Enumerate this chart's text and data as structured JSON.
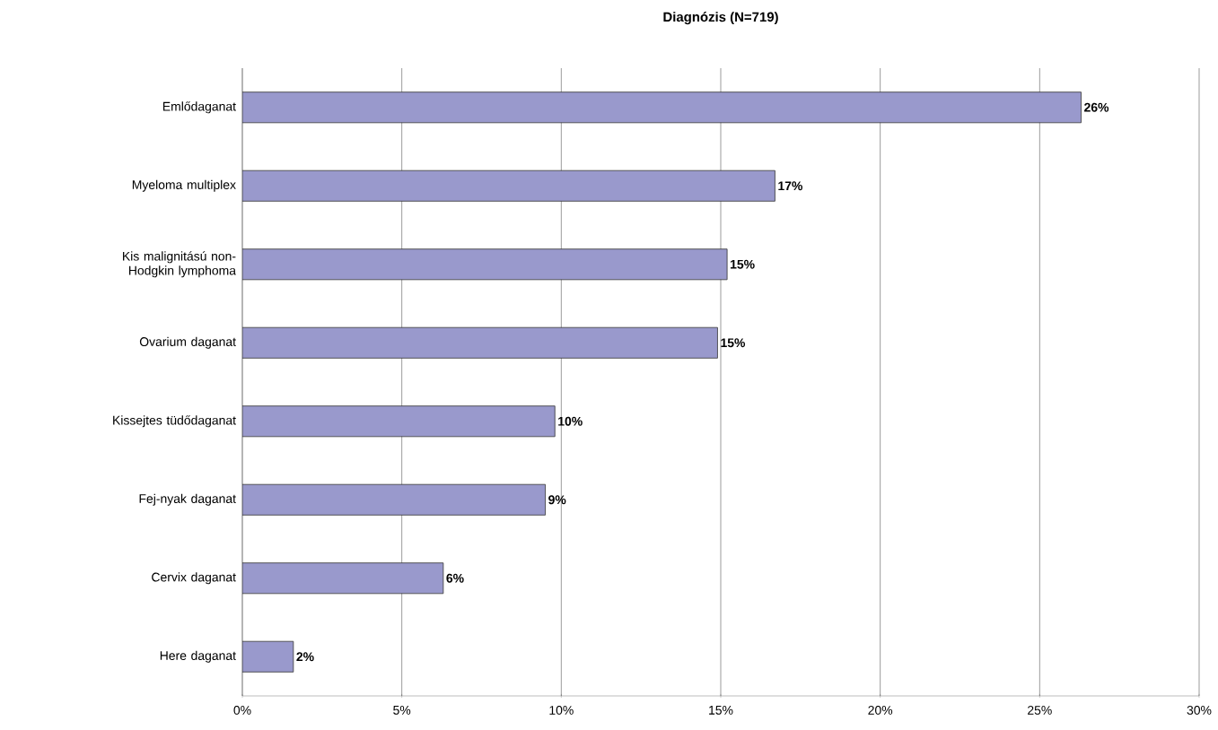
{
  "chart_data": {
    "type": "bar",
    "orientation": "horizontal",
    "title": "Diagnózis (N=719)",
    "categories": [
      "Emlődaganat",
      "Myeloma multiplex",
      "Kis malignitású non-Hodgkin lymphoma",
      "Ovarium daganat",
      "Kissejtes tüdődaganat",
      "Fej-nyak daganat",
      "Cervix daganat",
      "Here daganat"
    ],
    "values": [
      26.3,
      16.7,
      15.2,
      14.9,
      9.8,
      9.5,
      6.3,
      1.6
    ],
    "value_labels": [
      "26%",
      "17%",
      "15%",
      "15%",
      "10%",
      "9%",
      "6%",
      "2%"
    ],
    "color": "#9999cc",
    "xlim": [
      0,
      30
    ],
    "xticks": [
      {
        "value": 0,
        "label": "0%"
      },
      {
        "value": 5,
        "label": "5%"
      },
      {
        "value": 10,
        "label": "10%"
      },
      {
        "value": 15,
        "label": "15%"
      },
      {
        "value": 20,
        "label": "20%"
      },
      {
        "value": 25,
        "label": "25%"
      },
      {
        "value": 30,
        "label": "30%"
      }
    ],
    "grid": "x"
  }
}
